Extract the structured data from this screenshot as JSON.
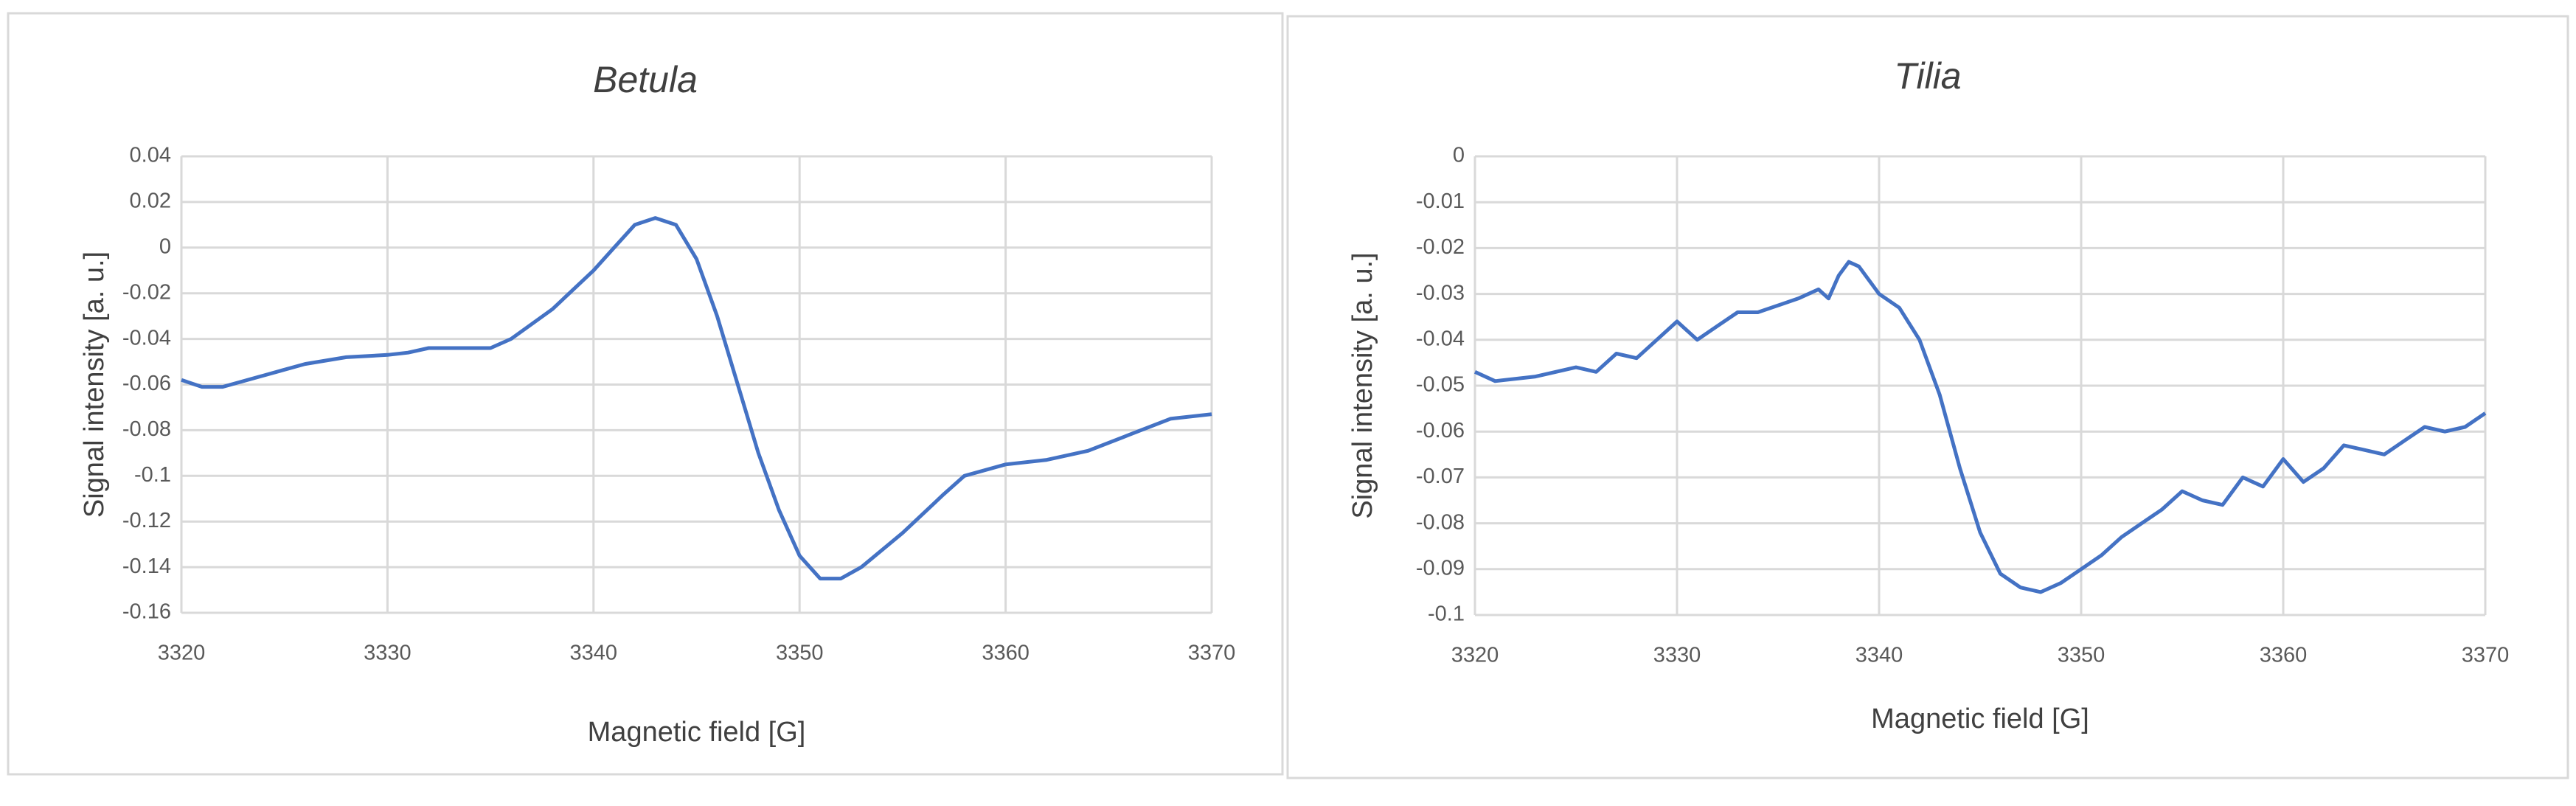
{
  "chart_data": [
    {
      "type": "line",
      "title": "Betula",
      "x_label": "Magnetic field [G]",
      "y_label": "Signal intensity [a. u.]",
      "color": "#4472c4",
      "x": [
        3320,
        3321,
        3322,
        3324,
        3326,
        3328,
        3330,
        3331,
        3332,
        3335,
        3336,
        3338,
        3340,
        3341,
        3342,
        3343,
        3344,
        3345,
        3346,
        3347,
        3348,
        3349,
        3350,
        3351,
        3352,
        3353,
        3355,
        3357,
        3358,
        3360,
        3362,
        3364,
        3366,
        3368,
        3370
      ],
      "values": [
        -0.058,
        -0.061,
        -0.061,
        -0.056,
        -0.051,
        -0.048,
        -0.047,
        -0.046,
        -0.044,
        -0.044,
        -0.04,
        -0.027,
        -0.01,
        0.0,
        0.01,
        0.013,
        0.01,
        -0.005,
        -0.03,
        -0.06,
        -0.09,
        -0.115,
        -0.135,
        -0.145,
        -0.145,
        -0.14,
        -0.125,
        -0.108,
        -0.1,
        -0.095,
        -0.093,
        -0.089,
        -0.082,
        -0.075,
        -0.073
      ],
      "xlim": [
        3320,
        3370
      ],
      "xticks": [
        3320,
        3330,
        3340,
        3350,
        3360,
        3370
      ],
      "ylim": [
        -0.16,
        0.04
      ],
      "yticks": [
        0.04,
        0.02,
        0,
        -0.02,
        -0.04,
        -0.06,
        -0.08,
        -0.1,
        -0.12,
        -0.14,
        -0.16
      ],
      "grid": true
    },
    {
      "type": "line",
      "title": "Tilia",
      "x_label": "Magnetic field [G]",
      "y_label": "Signal intensity [a. u.]",
      "color": "#4472c4",
      "x": [
        3320,
        3321,
        3323,
        3325,
        3326,
        3327,
        3328,
        3329,
        3330,
        3331,
        3332,
        3333,
        3334,
        3336,
        3337,
        3337.5,
        3338,
        3338.5,
        3339,
        3340,
        3341,
        3342,
        3343,
        3344,
        3345,
        3346,
        3347,
        3348,
        3349,
        3350,
        3351,
        3352,
        3353,
        3354,
        3355,
        3356,
        3357,
        3358,
        3359,
        3360,
        3361,
        3362,
        3363,
        3364,
        3365,
        3366,
        3367,
        3368,
        3369,
        3370
      ],
      "values": [
        -0.047,
        -0.049,
        -0.048,
        -0.046,
        -0.047,
        -0.043,
        -0.044,
        -0.04,
        -0.036,
        -0.04,
        -0.037,
        -0.034,
        -0.034,
        -0.031,
        -0.029,
        -0.031,
        -0.026,
        -0.023,
        -0.024,
        -0.03,
        -0.033,
        -0.04,
        -0.052,
        -0.068,
        -0.082,
        -0.091,
        -0.094,
        -0.095,
        -0.093,
        -0.09,
        -0.087,
        -0.083,
        -0.08,
        -0.077,
        -0.073,
        -0.075,
        -0.076,
        -0.07,
        -0.072,
        -0.066,
        -0.071,
        -0.068,
        -0.063,
        -0.064,
        -0.065,
        -0.062,
        -0.059,
        -0.06,
        -0.059,
        -0.056
      ],
      "xlim": [
        3320,
        3370
      ],
      "xticks": [
        3320,
        3330,
        3340,
        3350,
        3360,
        3370
      ],
      "ylim": [
        -0.1,
        0
      ],
      "yticks": [
        0,
        -0.01,
        -0.02,
        -0.03,
        -0.04,
        -0.05,
        -0.06,
        -0.07,
        -0.08,
        -0.09,
        -0.1
      ],
      "grid": true
    }
  ]
}
